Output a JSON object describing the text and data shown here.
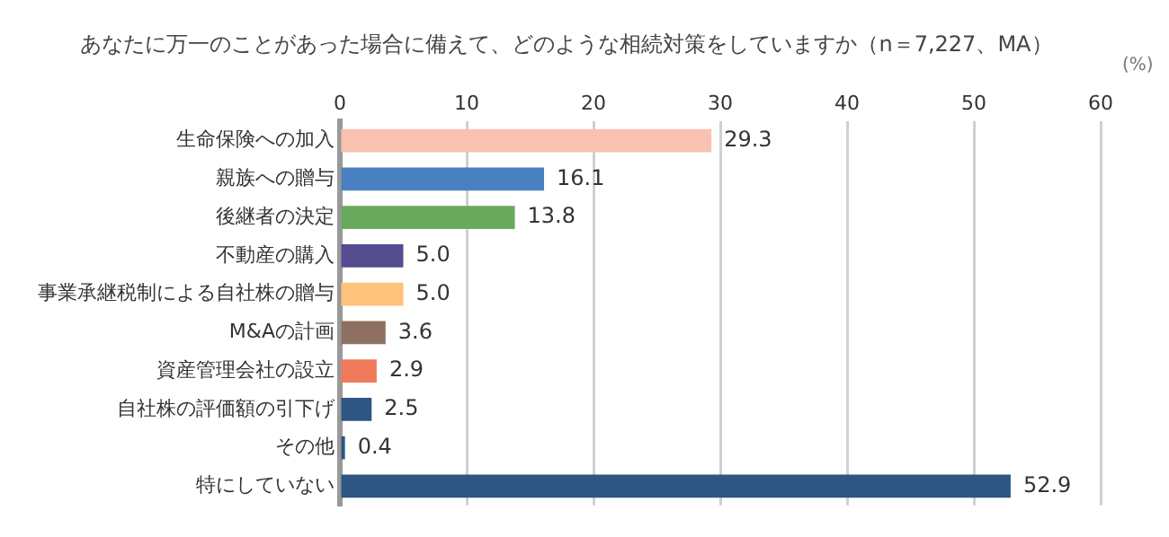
{
  "chart_data": {
    "type": "bar",
    "orientation": "horizontal",
    "title": "あなたに万一のことがあった場合に備えて、どのような相続対策をしていますか（n＝7,227、MA）",
    "xlabel": "(%)",
    "categories": [
      "生命保険への加入",
      "親族への贈与",
      "後継者の決定",
      "不動産の購入",
      "事業承継税制による自社株の贈与",
      "M&Aの計画",
      "資産管理会社の設立",
      "自社株の評価額の引下げ",
      "その他",
      "特にしていない"
    ],
    "values": [
      29.3,
      16.1,
      13.8,
      5.0,
      5.0,
      3.6,
      2.9,
      2.5,
      0.4,
      52.9
    ],
    "value_labels": [
      "29.3",
      "16.1",
      "13.8",
      "5.0",
      "5.0",
      "3.6",
      "2.9",
      "2.5",
      "0.4",
      "52.9"
    ],
    "colors": [
      "#f8c1b0",
      "#4a7fc0",
      "#6aaa5e",
      "#544d8f",
      "#fec37a",
      "#8d7061",
      "#ef7b5b",
      "#2e5583",
      "#2e5583",
      "#2e5583"
    ],
    "xlim": [
      0,
      60
    ],
    "xticks": [
      0,
      10,
      20,
      30,
      40,
      50,
      60
    ],
    "grid": "x",
    "legend": false
  }
}
